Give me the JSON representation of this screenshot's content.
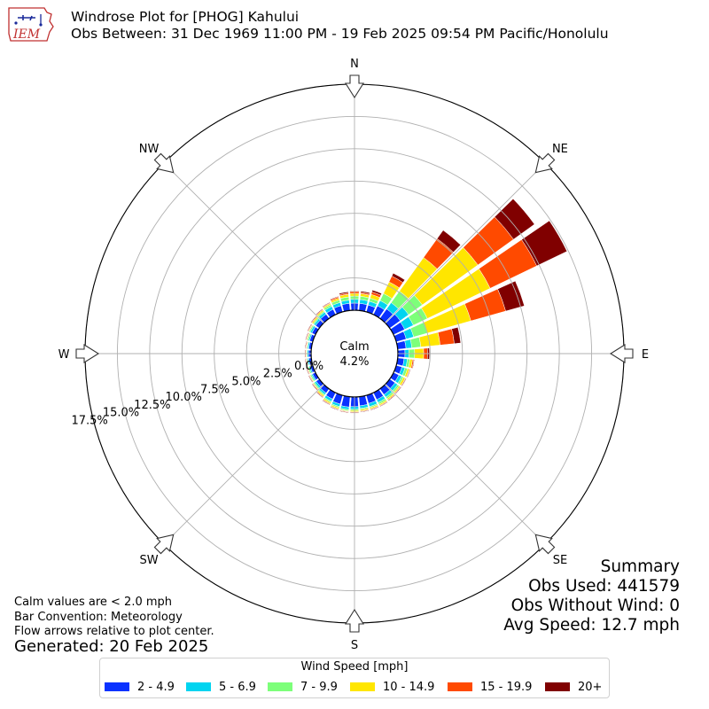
{
  "header": {
    "logo_text": "IEM",
    "title_line1": "Windrose Plot for [PHOG] Kahului",
    "title_line2": "Obs Between: 31 Dec 1969 11:00 PM - 19 Feb 2025 09:54 PM Pacific/Honolulu"
  },
  "footer": {
    "note1": "Calm values are < 2.0 mph",
    "note2": "Bar Convention: Meteorology",
    "note3": "Flow arrows relative to plot center.",
    "generated": "Generated: 20 Feb 2025"
  },
  "summary": {
    "title": "Summary",
    "obs_used": "Obs Used: 441579",
    "obs_without_wind": "Obs Without Wind: 0",
    "avg_speed": "Avg Speed: 12.7 mph"
  },
  "legend": {
    "title": "Wind Speed [mph]",
    "items": [
      {
        "label": "2 - 4.9",
        "color": "#0a32ff"
      },
      {
        "label": "5 - 6.9",
        "color": "#00d4f0"
      },
      {
        "label": "7 - 9.9",
        "color": "#7dff7a"
      },
      {
        "label": "10 - 14.9",
        "color": "#ffe600"
      },
      {
        "label": "15 - 19.9",
        "color": "#ff4a00"
      },
      {
        "label": "20+",
        "color": "#800000"
      }
    ]
  },
  "chart_data": {
    "type": "windrose",
    "calm_label": "Calm",
    "calm_value": "4.2%",
    "calm_percent": 4.2,
    "radial_tick_values": [
      0,
      2.5,
      5,
      7.5,
      10,
      12.5,
      15,
      17.5
    ],
    "radial_tick_labels": [
      "0.0%",
      "2.5%",
      "5.0%",
      "7.5%",
      "10.0%",
      "12.5%",
      "15.0%",
      "17.5%"
    ],
    "radial_max": 17.5,
    "compass_labels": [
      "N",
      "NE",
      "E",
      "SE",
      "S",
      "SW",
      "W",
      "NW"
    ],
    "direction_bins_deg": [
      0,
      10,
      20,
      30,
      40,
      50,
      60,
      70,
      80,
      90,
      100,
      110,
      120,
      130,
      140,
      150,
      160,
      170,
      180,
      190,
      200,
      210,
      220,
      230,
      240,
      250,
      260,
      270,
      280,
      290,
      300,
      310,
      320,
      330,
      340,
      350
    ],
    "speed_bins": [
      "2 - 4.9",
      "5 - 6.9",
      "7 - 9.9",
      "10 - 14.9",
      "15 - 19.9",
      "20+"
    ],
    "colors": [
      "#0a32ff",
      "#00d4f0",
      "#7dff7a",
      "#ffe600",
      "#ff4a00",
      "#800000"
    ],
    "cumulative_percent": [
      [
        0.55,
        0.85,
        1.1,
        1.3,
        1.45,
        1.5
      ],
      [
        0.55,
        0.85,
        1.1,
        1.3,
        1.4,
        1.5
      ],
      [
        0.55,
        0.85,
        1.1,
        1.4,
        1.6,
        1.75
      ],
      [
        0.75,
        1.2,
        1.8,
        2.8,
        3.3,
        3.55
      ],
      [
        0.9,
        1.5,
        2.6,
        5.8,
        7.6,
        8.4
      ],
      [
        1.0,
        1.8,
        3.1,
        8.4,
        11.8,
        13.8
      ],
      [
        0.95,
        1.7,
        2.9,
        8.3,
        12.3,
        14.9
      ],
      [
        0.8,
        1.4,
        2.5,
        6.0,
        8.8,
        10.3
      ],
      [
        0.65,
        1.1,
        1.8,
        3.3,
        4.4,
        4.9
      ],
      [
        0.55,
        0.85,
        1.3,
        2.0,
        2.3,
        2.45
      ],
      [
        0.5,
        0.75,
        0.95,
        1.15,
        1.25,
        1.3
      ],
      [
        0.45,
        0.7,
        0.9,
        1.05,
        1.1,
        1.15
      ],
      [
        0.45,
        0.7,
        0.85,
        1.0,
        1.05,
        1.1
      ],
      [
        0.5,
        0.75,
        0.9,
        1.0,
        1.05,
        1.1
      ],
      [
        0.55,
        0.8,
        0.95,
        1.05,
        1.1,
        1.15
      ],
      [
        0.6,
        0.85,
        1.0,
        1.1,
        1.15,
        1.2
      ],
      [
        0.65,
        0.9,
        1.0,
        1.1,
        1.15,
        1.2
      ],
      [
        0.7,
        0.9,
        1.0,
        1.1,
        1.15,
        1.2
      ],
      [
        0.75,
        0.95,
        1.05,
        1.15,
        1.2,
        1.25
      ],
      [
        0.8,
        1.0,
        1.1,
        1.15,
        1.2,
        1.25
      ],
      [
        0.7,
        0.9,
        1.0,
        1.1,
        1.15,
        1.2
      ],
      [
        0.55,
        0.75,
        0.85,
        0.95,
        1.0,
        1.05
      ],
      [
        0.4,
        0.55,
        0.65,
        0.75,
        0.8,
        0.85
      ],
      [
        0.3,
        0.45,
        0.55,
        0.6,
        0.65,
        0.7
      ],
      [
        0.25,
        0.35,
        0.45,
        0.5,
        0.55,
        0.6
      ],
      [
        0.2,
        0.3,
        0.4,
        0.45,
        0.5,
        0.55
      ],
      [
        0.2,
        0.3,
        0.35,
        0.4,
        0.45,
        0.5
      ],
      [
        0.2,
        0.3,
        0.35,
        0.4,
        0.45,
        0.5
      ],
      [
        0.2,
        0.3,
        0.35,
        0.4,
        0.45,
        0.5
      ],
      [
        0.25,
        0.35,
        0.45,
        0.5,
        0.55,
        0.6
      ],
      [
        0.3,
        0.45,
        0.55,
        0.6,
        0.65,
        0.7
      ],
      [
        0.35,
        0.5,
        0.6,
        0.7,
        0.75,
        0.8
      ],
      [
        0.4,
        0.6,
        0.7,
        0.8,
        0.85,
        0.9
      ],
      [
        0.45,
        0.7,
        0.85,
        0.95,
        1.0,
        1.05
      ],
      [
        0.5,
        0.75,
        0.95,
        1.1,
        1.2,
        1.25
      ],
      [
        0.55,
        0.8,
        1.05,
        1.25,
        1.35,
        1.45
      ]
    ]
  }
}
